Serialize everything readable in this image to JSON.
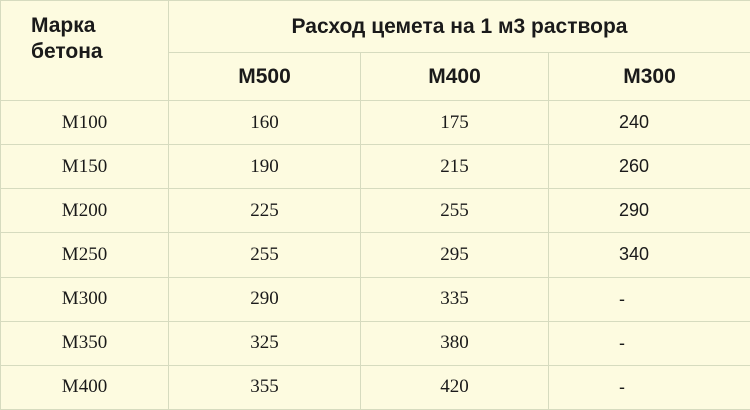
{
  "table": {
    "header": {
      "first": "Марка бетона",
      "group": "Расход цемета на 1 м3 раствора",
      "columns": [
        "М500",
        "М400",
        "М300"
      ]
    },
    "rows": [
      [
        "М100",
        "160",
        "175",
        "240"
      ],
      [
        "М150",
        "190",
        "215",
        "260"
      ],
      [
        "М200",
        "225",
        "255",
        "290"
      ],
      [
        "М250",
        "255",
        "295",
        "340"
      ],
      [
        "М300",
        "290",
        "335",
        "-"
      ],
      [
        "М350",
        "325",
        "380",
        "-"
      ],
      [
        "М400",
        "355",
        "420",
        "-"
      ]
    ]
  }
}
